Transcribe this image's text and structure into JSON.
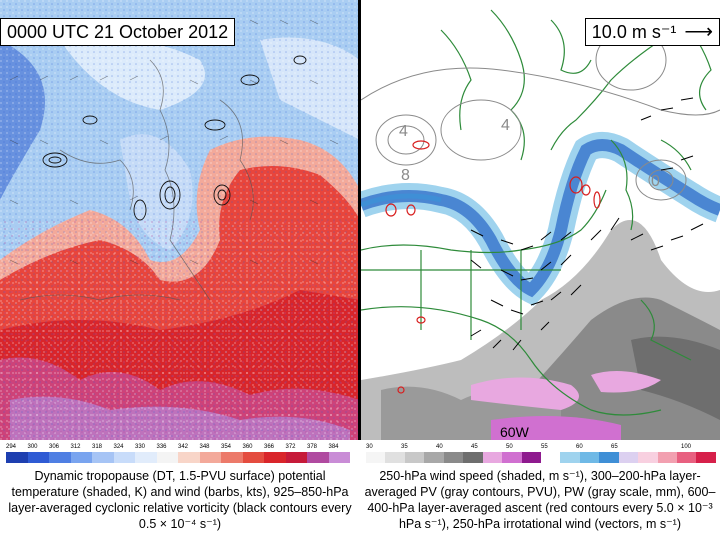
{
  "left": {
    "time_label": "0000 UTC 21 October 2012",
    "colorbar_ticks": [
      "294",
      "300",
      "306",
      "312",
      "318",
      "324",
      "330",
      "336",
      "342",
      "348",
      "354",
      "360",
      "366",
      "372",
      "378",
      "384"
    ],
    "colorbar_colors": [
      "#1e3fb0",
      "#2f5bd4",
      "#4f7fe3",
      "#79a4ef",
      "#a6c4f5",
      "#c8dcfa",
      "#e1ecfb",
      "#f4f4f4",
      "#f8d5c8",
      "#f3a99a",
      "#ec7a6a",
      "#e44c3f",
      "#d9252a",
      "#c61a39",
      "#b04aa0",
      "#c98cd6"
    ],
    "caption": "Dynamic tropopause (DT, 1.5-PVU surface) potential temperature (shaded, K) and wind (barbs, kts), 925–850-hPa layer-averaged cyclonic relative vorticity (black contours every 0.5 × 10⁻⁴ s⁻¹)"
  },
  "right": {
    "scale_label": "10.0 m s⁻¹",
    "longitude_label": "60W",
    "colorbar_ticks": [
      "30",
      "35",
      "40",
      "45",
      "50",
      "55",
      "60",
      "65",
      "",
      "100"
    ],
    "colorbar_colors": [
      "#f5f5f5",
      "#e0e0e0",
      "#c8c8c8",
      "#a8a8a8",
      "#8a8a8a",
      "#6e6e6e",
      "#e8a8e0",
      "#d070d0",
      "#8e1a8e",
      "#ffffff",
      "#9fd3ee",
      "#6fb9e6",
      "#3f8fd6",
      "#dcd0f0",
      "#f8d0e0",
      "#f2a0b0",
      "#e86080",
      "#d6204a"
    ],
    "caption": "250-hPa wind speed (shaded, m s⁻¹), 300–200-hPa layer-averaged PV (gray contours, PVU), PW (gray scale, mm), 600–400-hPa layer-averaged ascent (red contours every 5.0 × 10⁻³ hPa s⁻¹), 250-hPa irrotational wind (vectors, m s⁻¹)"
  },
  "colors": {
    "cold_tropopause": "#a9cdf2",
    "warm_tropopause": "#e8453c",
    "jet_stream": "#4a86d2",
    "coastline": "#2e8b3a",
    "ascent_contour": "#d81e1e"
  }
}
